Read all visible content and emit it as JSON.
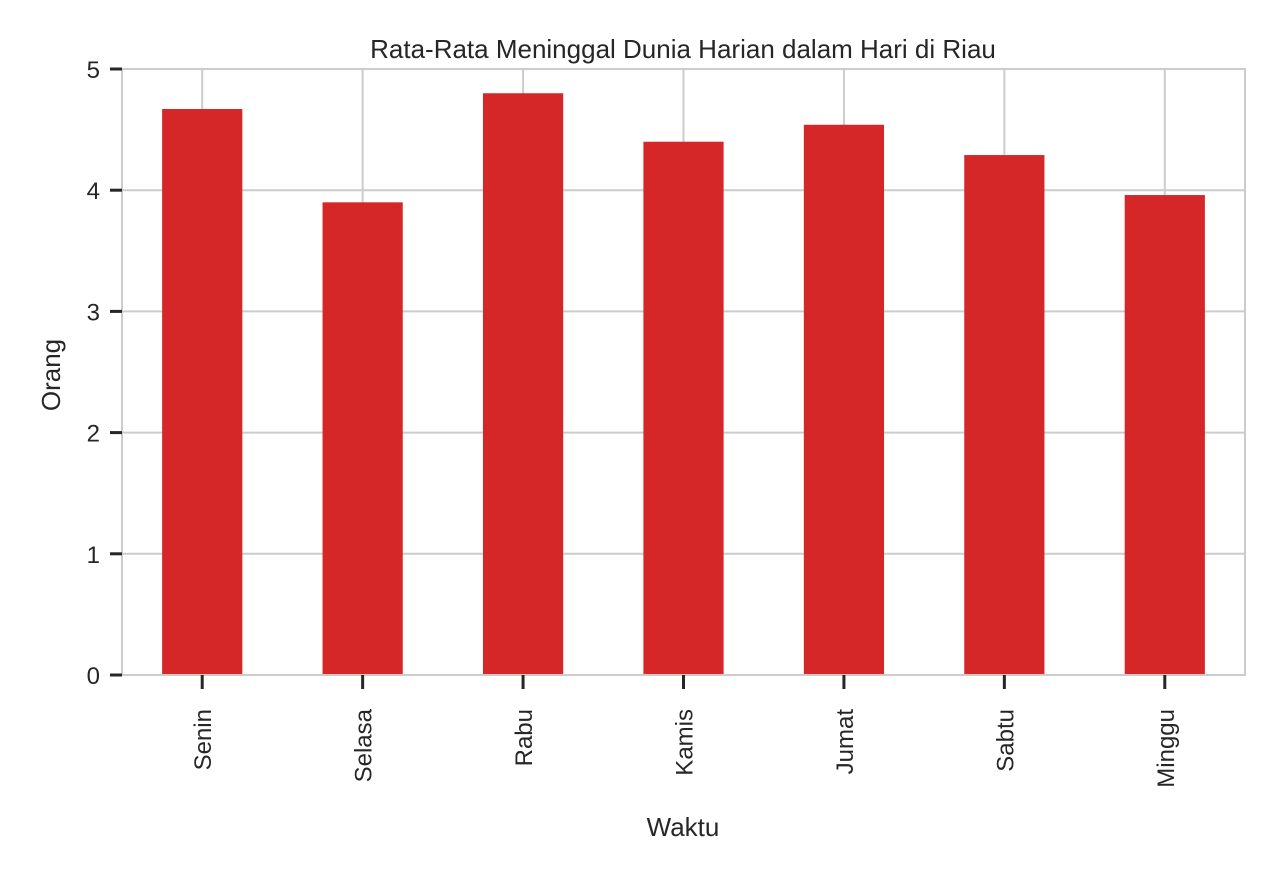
{
  "chart_data": {
    "type": "bar",
    "title": "Rata-Rata Meninggal Dunia Harian dalam Hari di Riau",
    "xlabel": "Waktu",
    "ylabel": "Orang",
    "categories": [
      "Senin",
      "Selasa",
      "Rabu",
      "Kamis",
      "Jumat",
      "Sabtu",
      "Minggu"
    ],
    "values": [
      4.67,
      3.9,
      4.8,
      4.4,
      4.54,
      4.29,
      3.96
    ],
    "ylim": [
      0,
      5
    ],
    "yticks": [
      0,
      1,
      2,
      3,
      4,
      5
    ],
    "ytick_labels": [
      "0",
      "1",
      "2",
      "3",
      "4",
      "5"
    ],
    "grid": true,
    "legend": "none",
    "colors": {
      "bar": "#d62728",
      "grid": "#cccccc",
      "spine": "#cccccc",
      "tick": "#262626",
      "text": "#262626"
    }
  }
}
